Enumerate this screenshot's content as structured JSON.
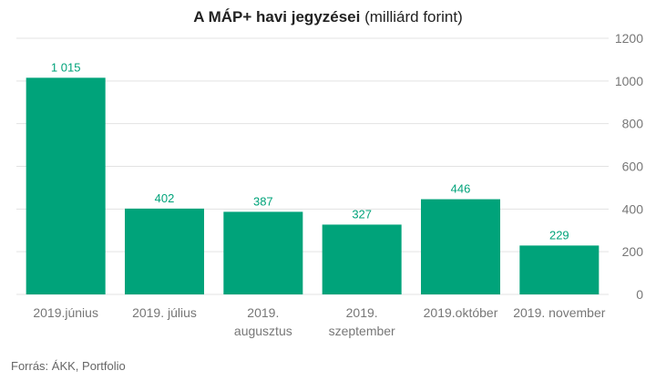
{
  "title_bold": "A MÁP+ havi jegyzései",
  "title_rest": "(milliárd forint)",
  "source": "Forrás: ÁKK, Portfolio",
  "colors": {
    "bar": "#00a37a",
    "label": "#00a37a",
    "grid": "#e3e3e3",
    "axis_text": "#777777"
  },
  "chart_data": {
    "type": "bar",
    "title": "A MÁP+ havi jegyzései (milliárd forint)",
    "xlabel": "",
    "ylabel": "",
    "categories": [
      [
        "2019.június"
      ],
      [
        "2019. július"
      ],
      [
        "2019.",
        "augusztus"
      ],
      [
        "2019.",
        "szeptember"
      ],
      [
        "2019.október"
      ],
      [
        "2019. november"
      ]
    ],
    "values": [
      1015,
      402,
      387,
      327,
      446,
      229
    ],
    "value_labels": [
      "1 015",
      "402",
      "387",
      "327",
      "446",
      "229"
    ],
    "ylim": [
      0,
      1200
    ],
    "yticks": [
      0,
      200,
      400,
      600,
      800,
      1000,
      1200
    ],
    "y_axis_position": "right",
    "grid": true,
    "legend": "none"
  }
}
